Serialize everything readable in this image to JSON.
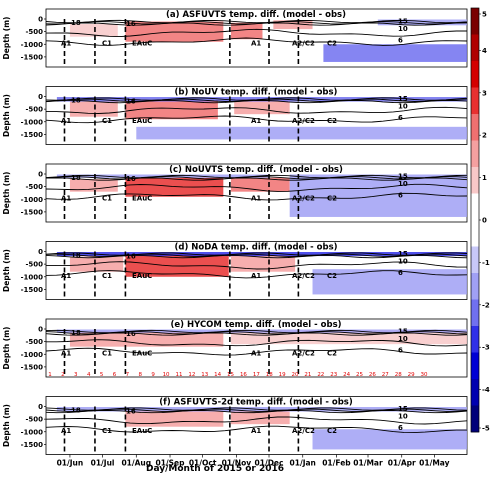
{
  "figure": {
    "xlabel": "Day/Month of 2015 or 2016",
    "ylabel": "Depth (m)",
    "x_ticks": [
      "01/Jun",
      "01/Jul",
      "01/Aug",
      "01/Sep",
      "01/Oct",
      "01/Nov",
      "01/Dec",
      "01/Jan",
      "01/Feb",
      "01/Mar",
      "01/Apr",
      "01/May"
    ],
    "colorbar": {
      "ticks": [
        "5",
        "4",
        "3",
        "2",
        "1",
        "0",
        "-1",
        "-2",
        "-3",
        "-4",
        "-5"
      ],
      "colors": [
        "#7a0000",
        "#b00000",
        "#d40000",
        "#e83030",
        "#f07070",
        "#f4a0a0",
        "#f8c8c8",
        "#ffffff",
        "#ffffff",
        "#c8c8f8",
        "#a0a0f4",
        "#7070f0",
        "#3030e8",
        "#0000d4",
        "#0000b0",
        "#00007a"
      ]
    },
    "section_labels": [
      "A1",
      "C1",
      "EAuC",
      "A1",
      "A2/C2",
      "C2"
    ],
    "isotherm_labels": [
      "18",
      "16",
      "15",
      "10",
      "6"
    ]
  },
  "chart_data": [
    {
      "type": "heatmap",
      "title": "(a) ASFUVTS temp. diff. (model - obs)",
      "ylabel": "Depth (m)",
      "y_ticks": [
        "0",
        "-500",
        "-1000",
        "-1500"
      ],
      "ylim": [
        -1900,
        0
      ],
      "xlim": [
        "2015-05-10",
        "2016-05-31"
      ],
      "section_dividers": [
        "2015-05-27",
        "2015-06-24",
        "2015-07-22",
        "2015-10-26",
        "2015-12-01",
        "2015-12-28"
      ],
      "contour_values": [
        18,
        16,
        15,
        10,
        6
      ],
      "blobs": [
        {
          "from": "2015-07-22",
          "to": "2015-10-20",
          "top": -100,
          "bottom": -900,
          "diff": 2.5
        },
        {
          "from": "2015-06-01",
          "to": "2015-07-15",
          "top": -200,
          "bottom": -700,
          "diff": 1.2
        },
        {
          "from": "2015-10-27",
          "to": "2015-11-25",
          "top": -150,
          "bottom": -800,
          "diff": 2.5
        },
        {
          "from": "2016-01-20",
          "to": "2016-05-31",
          "top": -1000,
          "bottom": -1700,
          "diff": -2
        },
        {
          "from": "2015-12-05",
          "to": "2016-01-10",
          "top": -50,
          "bottom": -400,
          "diff": 1.5
        },
        {
          "from": "2016-03-10",
          "to": "2016-05-31",
          "top": -20,
          "bottom": -250,
          "diff": -1.5
        }
      ]
    },
    {
      "type": "heatmap",
      "title": "(b) NoUV temp. diff. (model - obs)",
      "ylabel": "Depth (m)",
      "y_ticks": [
        "0",
        "-500",
        "-1000",
        "-1500"
      ],
      "ylim": [
        -1900,
        0
      ],
      "xlim": [
        "2015-05-10",
        "2016-05-31"
      ],
      "section_dividers": [
        "2015-05-27",
        "2015-06-24",
        "2015-07-22",
        "2015-10-26",
        "2015-12-01",
        "2015-12-28"
      ],
      "contour_values": [
        18,
        16,
        15,
        10,
        6
      ],
      "blobs": [
        {
          "from": "2015-07-22",
          "to": "2015-10-15",
          "top": -150,
          "bottom": -900,
          "diff": 2.5
        },
        {
          "from": "2015-06-01",
          "to": "2015-07-15",
          "top": -200,
          "bottom": -800,
          "diff": 1.5
        },
        {
          "from": "2015-10-30",
          "to": "2015-12-20",
          "top": -100,
          "bottom": -700,
          "diff": 1.5
        },
        {
          "from": "2015-05-20",
          "to": "2016-05-31",
          "top": -20,
          "bottom": -200,
          "diff": -2
        },
        {
          "from": "2015-08-01",
          "to": "2016-05-31",
          "top": -1200,
          "bottom": -1700,
          "diff": -1.5
        }
      ]
    },
    {
      "type": "heatmap",
      "title": "(c) NoUVTS temp. diff. (model - obs)",
      "ylabel": "Depth (m)",
      "y_ticks": [
        "0",
        "-500",
        "-1000",
        "-1500"
      ],
      "ylim": [
        -1900,
        0
      ],
      "xlim": [
        "2015-05-10",
        "2016-05-31"
      ],
      "section_dividers": [
        "2015-05-27",
        "2015-06-24",
        "2015-07-22",
        "2015-10-26",
        "2015-12-01",
        "2015-12-28"
      ],
      "contour_values": [
        18,
        16,
        15,
        10,
        6
      ],
      "blobs": [
        {
          "from": "2015-07-22",
          "to": "2015-10-20",
          "top": -150,
          "bottom": -900,
          "diff": 3
        },
        {
          "from": "2015-06-01",
          "to": "2015-07-15",
          "top": -200,
          "bottom": -700,
          "diff": 1.5
        },
        {
          "from": "2015-10-27",
          "to": "2015-12-20",
          "top": -150,
          "bottom": -700,
          "diff": 2.5
        },
        {
          "from": "2015-12-20",
          "to": "2016-05-31",
          "top": -20,
          "bottom": -1700,
          "diff": -1.8
        },
        {
          "from": "2015-05-20",
          "to": "2015-12-01",
          "top": -20,
          "bottom": -150,
          "diff": -1.5
        }
      ]
    },
    {
      "type": "heatmap",
      "title": "(d) NoDA temp. diff. (model - obs)",
      "ylabel": "Depth (m)",
      "y_ticks": [
        "0",
        "-500",
        "-1000",
        "-1500"
      ],
      "ylim": [
        -1900,
        0
      ],
      "xlim": [
        "2015-05-10",
        "2016-05-31"
      ],
      "section_dividers": [
        "2015-05-27",
        "2015-06-24",
        "2015-07-22",
        "2015-10-26",
        "2015-12-01",
        "2015-12-28"
      ],
      "contour_values": [
        18,
        16,
        15,
        10,
        6
      ],
      "blobs": [
        {
          "from": "2015-07-22",
          "to": "2015-10-25",
          "top": -100,
          "bottom": -1000,
          "diff": 3
        },
        {
          "from": "2015-06-01",
          "to": "2015-07-20",
          "top": -200,
          "bottom": -800,
          "diff": 1.5
        },
        {
          "from": "2015-10-27",
          "to": "2015-12-25",
          "top": -150,
          "bottom": -800,
          "diff": 1.5
        },
        {
          "from": "2015-05-20",
          "to": "2016-05-31",
          "top": -20,
          "bottom": -180,
          "diff": -3
        },
        {
          "from": "2016-01-10",
          "to": "2016-05-31",
          "top": -700,
          "bottom": -1700,
          "diff": -1.5
        }
      ]
    },
    {
      "type": "heatmap",
      "title": "(e) HYCOM temp. diff. (model - obs)",
      "ylabel": "Depth (m)",
      "y_ticks": [
        "0",
        "-500",
        "-1000",
        "-1500"
      ],
      "ylim": [
        -1900,
        0
      ],
      "xlim": [
        "2015-05-10",
        "2016-05-31"
      ],
      "section_dividers": [
        "2015-05-27",
        "2015-06-24",
        "2015-07-22",
        "2015-10-26",
        "2015-12-01",
        "2015-12-28"
      ],
      "contour_values": [
        18,
        16,
        15,
        10,
        6
      ],
      "blobs": [
        {
          "from": "2015-06-01",
          "to": "2015-10-20",
          "top": -100,
          "bottom": -700,
          "diff": 1.5
        },
        {
          "from": "2015-10-27",
          "to": "2016-05-31",
          "top": -50,
          "bottom": -600,
          "diff": 1.2
        },
        {
          "from": "2015-05-20",
          "to": "2016-05-31",
          "top": -20,
          "bottom": -150,
          "diff": -1.5
        }
      ],
      "transect_labels": [
        "1",
        "2",
        "3",
        "4",
        "5",
        "6",
        "7",
        "8",
        "9",
        "10",
        "11",
        "12",
        "13",
        "14",
        "15",
        "16",
        "17",
        "18",
        "19",
        "20",
        "21",
        "22",
        "23",
        "24",
        "25",
        "26",
        "27",
        "28",
        "29",
        "30"
      ]
    },
    {
      "type": "heatmap",
      "title": "(f) ASFUVTS-2d temp. diff. (model - obs)",
      "ylabel": "Depth (m)",
      "y_ticks": [
        "0",
        "-500",
        "-1000",
        "-1500"
      ],
      "ylim": [
        -1900,
        0
      ],
      "xlim": [
        "2015-05-10",
        "2016-05-31"
      ],
      "section_dividers": [
        "2015-05-27",
        "2015-06-24",
        "2015-07-22",
        "2015-10-26",
        "2015-12-01",
        "2015-12-28"
      ],
      "contour_values": [
        18,
        16,
        15,
        10,
        6
      ],
      "blobs": [
        {
          "from": "2015-07-22",
          "to": "2015-10-20",
          "top": -150,
          "bottom": -800,
          "diff": 1.5
        },
        {
          "from": "2015-10-27",
          "to": "2015-12-20",
          "top": -150,
          "bottom": -700,
          "diff": 1.5
        },
        {
          "from": "2015-05-20",
          "to": "2016-05-31",
          "top": -20,
          "bottom": -200,
          "diff": -1.5
        },
        {
          "from": "2016-01-10",
          "to": "2016-05-31",
          "top": -900,
          "bottom": -1700,
          "diff": -1.8
        }
      ]
    }
  ]
}
